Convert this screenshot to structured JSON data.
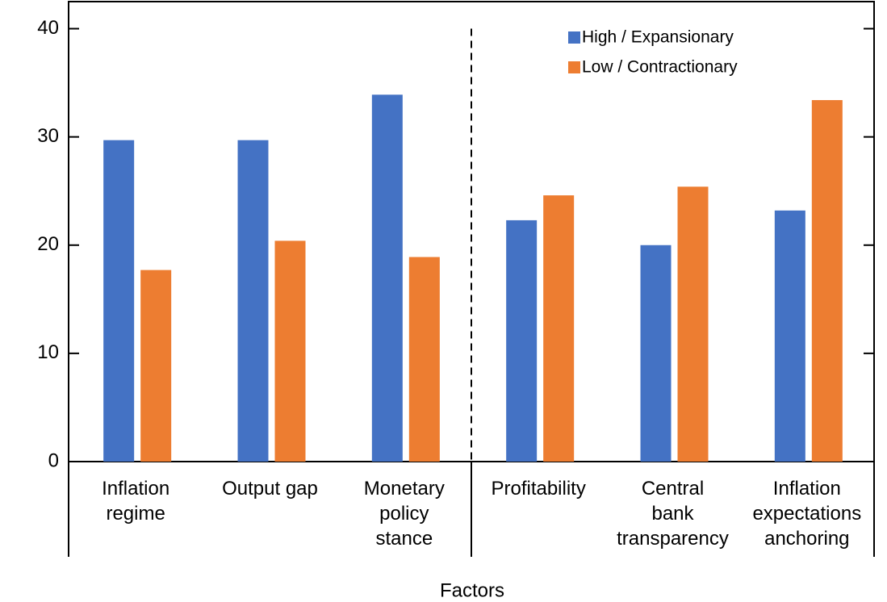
{
  "chart_data": {
    "type": "bar",
    "x_label": "Factors",
    "categories": [
      "Inflation\nregime",
      "Output gap",
      "Monetary\npolicy\nstance",
      "Profitability",
      "Central\nbank\ntransparency",
      "Inflation\nexpectations\nanchoring"
    ],
    "series": [
      {
        "name": "High / Expansionary",
        "color": "#4472c4",
        "values": [
          29.7,
          29.7,
          33.9,
          22.3,
          20.0,
          23.2
        ]
      },
      {
        "name": "Low / Contractionary",
        "color": "#ed7d31",
        "values": [
          17.7,
          20.4,
          18.9,
          24.6,
          25.4,
          33.4
        ]
      }
    ],
    "ylim": [
      0,
      42.5
    ],
    "yticks": [
      0,
      10,
      20,
      30,
      40
    ],
    "legend": "top-right"
  }
}
